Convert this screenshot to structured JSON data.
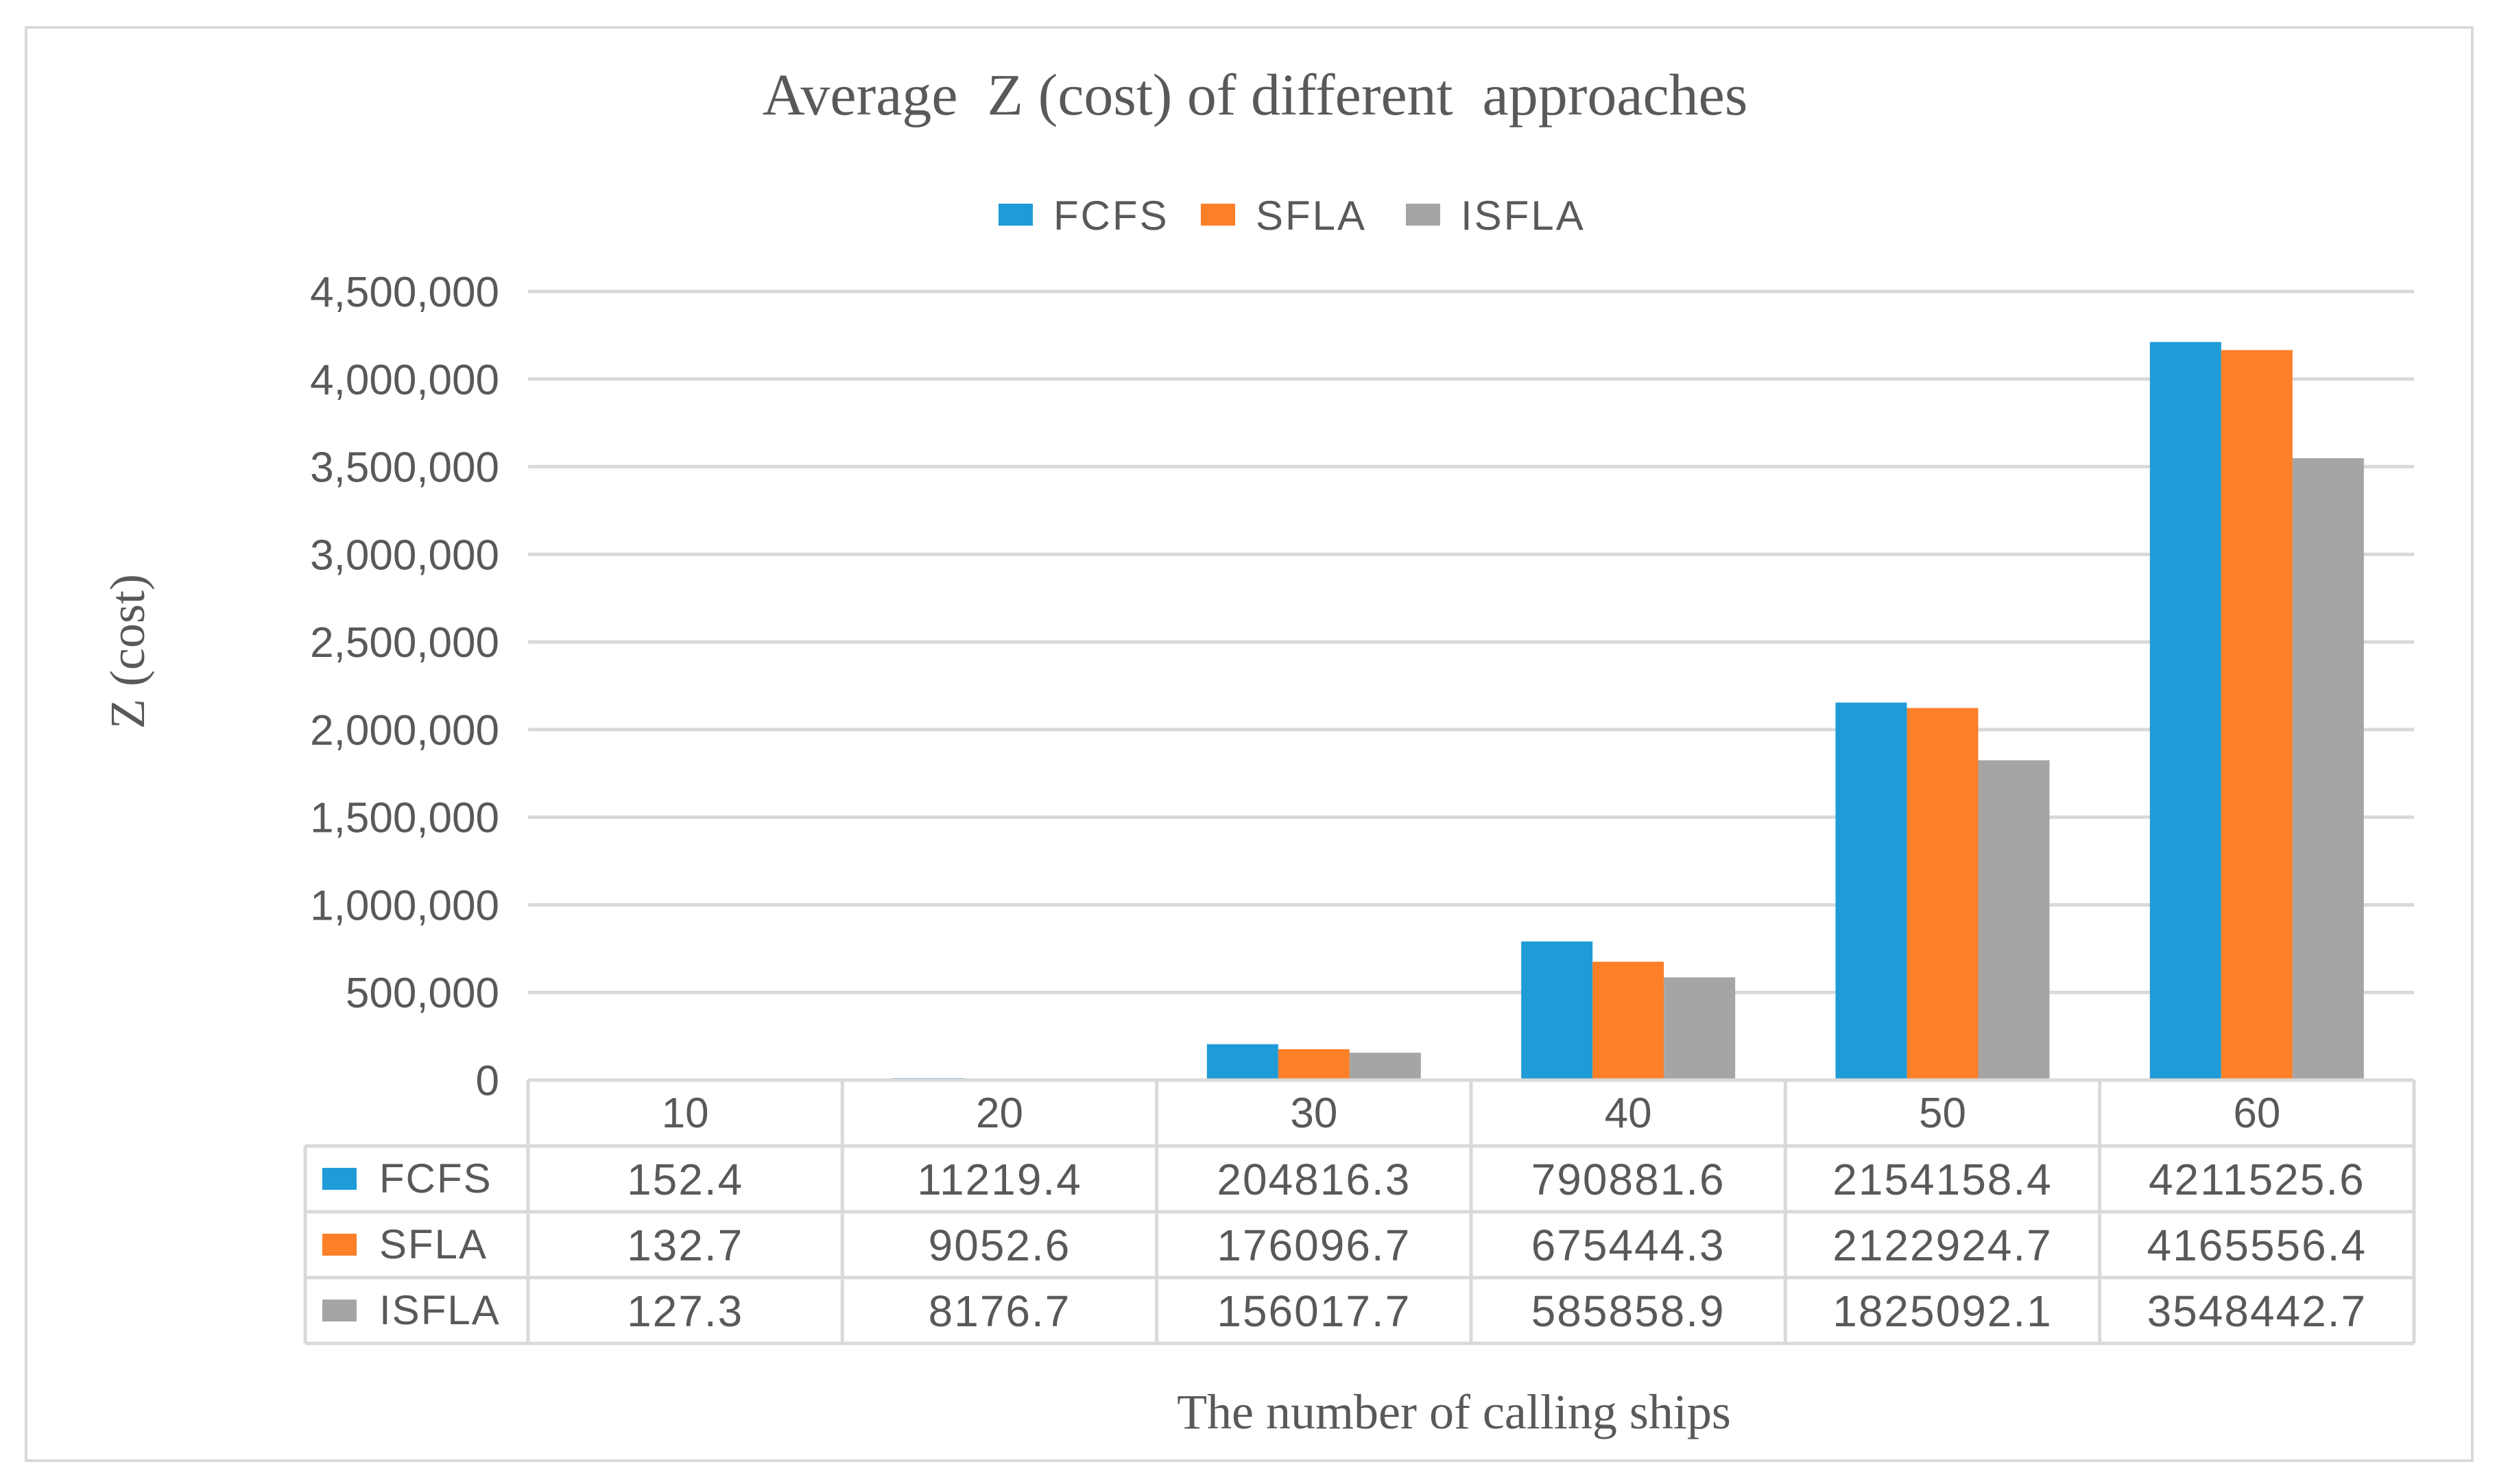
{
  "colors": {
    "FCFS": "#1f9bd7",
    "SFLA": "#fd7f28",
    "ISFLA": "#a5a5a5",
    "grid": "#d9d9d9",
    "text": "#595959",
    "border": "#d9d9d9"
  },
  "chart_data": {
    "type": "bar",
    "title": "Average  Z (cost) of different  approaches",
    "xlabel": "The number of calling ships",
    "ylabel": "Z (cost)",
    "categories": [
      "10",
      "20",
      "30",
      "40",
      "50",
      "60"
    ],
    "ylim": [
      0,
      4500000
    ],
    "yticks": [
      0,
      500000,
      1000000,
      1500000,
      2000000,
      2500000,
      3000000,
      3500000,
      4000000,
      4500000
    ],
    "ytick_labels": [
      "0",
      "500,000",
      "1,000,000",
      "1,500,000",
      "2,000,000",
      "2,500,000",
      "3,000,000",
      "3,500,000",
      "4,000,000",
      "4,500,000"
    ],
    "grid": true,
    "legend_position": "top",
    "series": [
      {
        "name": "FCFS",
        "values": [
          152.4,
          11219.4,
          204816.3,
          790881.6,
          2154158.4,
          4211525.6
        ],
        "labels": [
          "152.4",
          "11219.4",
          "204816.3",
          "790881.6",
          "2154158.4",
          "4211525.6"
        ]
      },
      {
        "name": "SFLA",
        "values": [
          132.7,
          9052.6,
          176096.7,
          675444.3,
          2122924.7,
          4165556.4
        ],
        "labels": [
          "132.7",
          "9052.6",
          "176096.7",
          "675444.3",
          "2122924.7",
          "4165556.4"
        ]
      },
      {
        "name": "ISFLA",
        "values": [
          127.3,
          8176.7,
          156017.7,
          585858.9,
          1825092.1,
          3548442.7
        ],
        "labels": [
          "127.3",
          "8176.7",
          "156017.7",
          "585858.9",
          "1825092.1",
          "3548442.7"
        ]
      }
    ]
  }
}
